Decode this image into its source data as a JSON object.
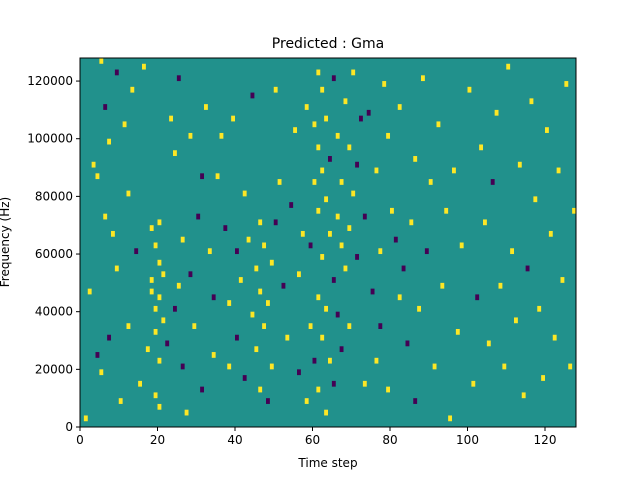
{
  "chart_data": {
    "type": "heatmap",
    "title": "Predicted : Gma",
    "xlabel": "Time step",
    "ylabel": "Frequency (Hz)",
    "xlim": [
      0,
      128
    ],
    "ylim": [
      0,
      128000
    ],
    "xticks": [
      0,
      20,
      40,
      60,
      80,
      100,
      120
    ],
    "yticks": [
      0,
      20000,
      40000,
      60000,
      80000,
      100000,
      120000
    ],
    "xtick_labels": [
      "0",
      "20",
      "40",
      "60",
      "80",
      "100",
      "120"
    ],
    "ytick_labels": [
      "0",
      "20000",
      "40000",
      "60000",
      "80000",
      "100000",
      "120000"
    ],
    "n_time_steps": 128,
    "n_freq_bins": 64,
    "grid": false,
    "colormap": "viridis",
    "levels": [
      -1,
      0,
      1
    ],
    "colors": {
      "low": "#440154",
      "mid": "#21918c",
      "high": "#fde725"
    },
    "background_level": 0,
    "cells": [
      [
        1,
        2000,
        1
      ],
      [
        2,
        46000,
        1
      ],
      [
        3,
        90000,
        1
      ],
      [
        4,
        86000,
        1
      ],
      [
        4,
        24000,
        -1
      ],
      [
        5,
        126000,
        1
      ],
      [
        5,
        18000,
        1
      ],
      [
        6,
        110000,
        -1
      ],
      [
        6,
        72000,
        1
      ],
      [
        7,
        98000,
        1
      ],
      [
        7,
        30000,
        -1
      ],
      [
        8,
        66000,
        1
      ],
      [
        9,
        122000,
        -1
      ],
      [
        9,
        54000,
        1
      ],
      [
        10,
        8000,
        1
      ],
      [
        11,
        104000,
        1
      ],
      [
        12,
        80000,
        1
      ],
      [
        12,
        34000,
        1
      ],
      [
        13,
        116000,
        1
      ],
      [
        14,
        60000,
        -1
      ],
      [
        15,
        14000,
        1
      ],
      [
        16,
        124000,
        1
      ],
      [
        17,
        26000,
        1
      ],
      [
        18,
        68000,
        1
      ],
      [
        18,
        50000,
        1
      ],
      [
        18,
        46000,
        1
      ],
      [
        19,
        40000,
        1
      ],
      [
        19,
        32000,
        1
      ],
      [
        19,
        62000,
        1
      ],
      [
        19,
        10000,
        1
      ],
      [
        20,
        56000,
        1
      ],
      [
        20,
        44000,
        1
      ],
      [
        20,
        22000,
        1
      ],
      [
        20,
        6000,
        1
      ],
      [
        20,
        70000,
        1
      ],
      [
        21,
        36000,
        1
      ],
      [
        21,
        52000,
        1
      ],
      [
        22,
        28000,
        -1
      ],
      [
        23,
        106000,
        1
      ],
      [
        24,
        94000,
        1
      ],
      [
        24,
        40000,
        -1
      ],
      [
        25,
        120000,
        -1
      ],
      [
        25,
        48000,
        1
      ],
      [
        26,
        64000,
        1
      ],
      [
        26,
        20000,
        -1
      ],
      [
        27,
        4000,
        1
      ],
      [
        28,
        100000,
        1
      ],
      [
        28,
        52000,
        -1
      ],
      [
        29,
        34000,
        1
      ],
      [
        30,
        72000,
        -1
      ],
      [
        31,
        86000,
        -1
      ],
      [
        31,
        12000,
        -1
      ],
      [
        32,
        110000,
        1
      ],
      [
        33,
        60000,
        1
      ],
      [
        34,
        44000,
        -1
      ],
      [
        34,
        24000,
        1
      ],
      [
        35,
        86000,
        1
      ],
      [
        36,
        100000,
        1
      ],
      [
        37,
        68000,
        -1
      ],
      [
        38,
        42000,
        1
      ],
      [
        38,
        20000,
        1
      ],
      [
        39,
        106000,
        1
      ],
      [
        40,
        60000,
        -1
      ],
      [
        40,
        30000,
        -1
      ],
      [
        41,
        50000,
        1
      ],
      [
        42,
        80000,
        1
      ],
      [
        42,
        16000,
        -1
      ],
      [
        43,
        64000,
        1
      ],
      [
        44,
        114000,
        -1
      ],
      [
        44,
        38000,
        1
      ],
      [
        45,
        54000,
        1
      ],
      [
        45,
        26000,
        1
      ],
      [
        46,
        70000,
        1
      ],
      [
        46,
        46000,
        1
      ],
      [
        46,
        12000,
        1
      ],
      [
        47,
        62000,
        1
      ],
      [
        47,
        34000,
        1
      ],
      [
        48,
        42000,
        1
      ],
      [
        48,
        8000,
        -1
      ],
      [
        49,
        56000,
        1
      ],
      [
        49,
        20000,
        1
      ],
      [
        50,
        70000,
        -1
      ],
      [
        50,
        116000,
        1
      ],
      [
        51,
        84000,
        1
      ],
      [
        52,
        48000,
        -1
      ],
      [
        53,
        30000,
        1
      ],
      [
        54,
        76000,
        -1
      ],
      [
        55,
        102000,
        1
      ],
      [
        56,
        52000,
        1
      ],
      [
        56,
        18000,
        -1
      ],
      [
        57,
        66000,
        1
      ],
      [
        58,
        110000,
        1
      ],
      [
        58,
        8000,
        1
      ],
      [
        59,
        34000,
        1
      ],
      [
        59,
        62000,
        -1
      ],
      [
        60,
        104000,
        1
      ],
      [
        60,
        84000,
        1
      ],
      [
        60,
        22000,
        -1
      ],
      [
        61,
        122000,
        1
      ],
      [
        61,
        96000,
        1
      ],
      [
        61,
        74000,
        1
      ],
      [
        61,
        44000,
        1
      ],
      [
        61,
        12000,
        1
      ],
      [
        62,
        116000,
        1
      ],
      [
        62,
        88000,
        1
      ],
      [
        62,
        58000,
        1
      ],
      [
        62,
        30000,
        1
      ],
      [
        63,
        106000,
        1
      ],
      [
        63,
        78000,
        1
      ],
      [
        63,
        40000,
        1
      ],
      [
        63,
        4000,
        1
      ],
      [
        64,
        92000,
        -1
      ],
      [
        64,
        66000,
        1
      ],
      [
        64,
        22000,
        1
      ],
      [
        65,
        120000,
        -1
      ],
      [
        65,
        50000,
        -1
      ],
      [
        65,
        14000,
        -1
      ],
      [
        66,
        100000,
        1
      ],
      [
        66,
        72000,
        1
      ],
      [
        66,
        38000,
        -1
      ],
      [
        67,
        84000,
        1
      ],
      [
        67,
        62000,
        1
      ],
      [
        67,
        26000,
        -1
      ],
      [
        68,
        112000,
        1
      ],
      [
        68,
        54000,
        1
      ],
      [
        69,
        96000,
        1
      ],
      [
        69,
        68000,
        1
      ],
      [
        69,
        34000,
        1
      ],
      [
        70,
        122000,
        1
      ],
      [
        70,
        80000,
        1
      ],
      [
        71,
        58000,
        -1
      ],
      [
        71,
        90000,
        -1
      ],
      [
        72,
        106000,
        -1
      ],
      [
        73,
        14000,
        1
      ],
      [
        73,
        72000,
        -1
      ],
      [
        74,
        108000,
        -1
      ],
      [
        75,
        46000,
        -1
      ],
      [
        76,
        88000,
        1
      ],
      [
        76,
        22000,
        1
      ],
      [
        77,
        60000,
        1
      ],
      [
        77,
        34000,
        -1
      ],
      [
        78,
        118000,
        1
      ],
      [
        79,
        100000,
        1
      ],
      [
        79,
        12000,
        1
      ],
      [
        80,
        74000,
        1
      ],
      [
        81,
        64000,
        -1
      ],
      [
        82,
        110000,
        1
      ],
      [
        82,
        44000,
        1
      ],
      [
        83,
        54000,
        -1
      ],
      [
        84,
        28000,
        -1
      ],
      [
        85,
        70000,
        1
      ],
      [
        86,
        92000,
        1
      ],
      [
        86,
        8000,
        -1
      ],
      [
        87,
        40000,
        1
      ],
      [
        88,
        120000,
        1
      ],
      [
        89,
        60000,
        -1
      ],
      [
        90,
        84000,
        1
      ],
      [
        91,
        20000,
        1
      ],
      [
        92,
        104000,
        1
      ],
      [
        93,
        48000,
        1
      ],
      [
        94,
        74000,
        1
      ],
      [
        95,
        2000,
        1
      ],
      [
        96,
        88000,
        1
      ],
      [
        97,
        32000,
        1
      ],
      [
        98,
        62000,
        1
      ],
      [
        100,
        116000,
        1
      ],
      [
        101,
        14000,
        1
      ],
      [
        102,
        44000,
        -1
      ],
      [
        103,
        96000,
        1
      ],
      [
        104,
        70000,
        1
      ],
      [
        105,
        28000,
        1
      ],
      [
        106,
        84000,
        -1
      ],
      [
        107,
        108000,
        1
      ],
      [
        108,
        48000,
        1
      ],
      [
        109,
        20000,
        1
      ],
      [
        110,
        124000,
        1
      ],
      [
        111,
        60000,
        1
      ],
      [
        112,
        36000,
        1
      ],
      [
        113,
        90000,
        1
      ],
      [
        114,
        10000,
        1
      ],
      [
        115,
        54000,
        -1
      ],
      [
        116,
        112000,
        1
      ],
      [
        117,
        78000,
        1
      ],
      [
        118,
        40000,
        1
      ],
      [
        119,
        16000,
        1
      ],
      [
        120,
        102000,
        1
      ],
      [
        121,
        66000,
        1
      ],
      [
        122,
        30000,
        1
      ],
      [
        123,
        88000,
        1
      ],
      [
        124,
        50000,
        1
      ],
      [
        125,
        118000,
        1
      ],
      [
        126,
        20000,
        1
      ],
      [
        127,
        74000,
        1
      ]
    ]
  }
}
